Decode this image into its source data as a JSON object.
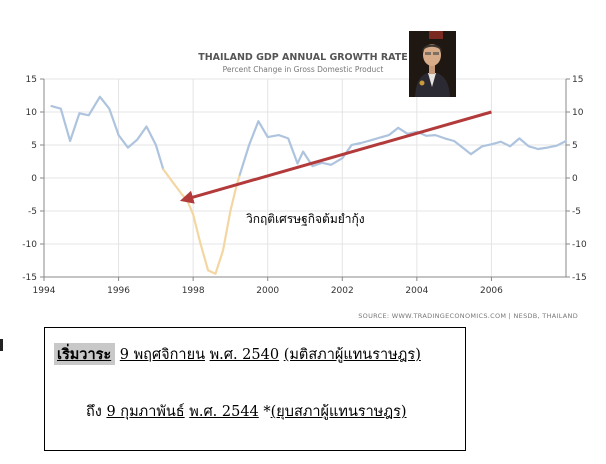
{
  "chart_data": {
    "type": "line",
    "title": "THAILAND GDP ANNUAL GROWTH RATE",
    "subtitle": "Percent Change in Gross Domestic Product",
    "source": "SOURCE: WWW.TRADINGECONOMICS.COM | NESDB, THAILAND",
    "xlim": [
      1994,
      2008
    ],
    "ylim": [
      -15,
      15
    ],
    "x_ticks": [
      "1994",
      "1996",
      "1998",
      "2000",
      "2002",
      "2004",
      "2006"
    ],
    "y_ticks": [
      "15",
      "10",
      "5",
      "0",
      "-5",
      "-10",
      "-15"
    ],
    "grid": true,
    "colors": {
      "normal": "#aec4de",
      "crisis": "#f4d6a2",
      "arrow": "#b23a3a"
    },
    "series": [
      {
        "segment": "normal",
        "points": [
          [
            1994.2,
            10.9
          ],
          [
            1994.45,
            10.5
          ],
          [
            1994.7,
            5.6
          ],
          [
            1994.95,
            9.8
          ],
          [
            1995.2,
            9.5
          ],
          [
            1995.5,
            12.3
          ],
          [
            1995.75,
            10.5
          ],
          [
            1996.0,
            6.5
          ],
          [
            1996.25,
            4.6
          ],
          [
            1996.5,
            5.8
          ],
          [
            1996.75,
            7.8
          ],
          [
            1997.0,
            5.0
          ],
          [
            1997.2,
            1.3
          ]
        ]
      },
      {
        "segment": "crisis",
        "points": [
          [
            1997.2,
            1.3
          ],
          [
            1997.45,
            -0.6
          ],
          [
            1997.7,
            -2.5
          ],
          [
            1997.85,
            -3.5
          ],
          [
            1998.0,
            -5.5
          ],
          [
            1998.2,
            -10.0
          ],
          [
            1998.4,
            -14.0
          ],
          [
            1998.6,
            -14.5
          ],
          [
            1998.8,
            -11.0
          ],
          [
            1999.0,
            -5.0
          ],
          [
            1999.15,
            -1.5
          ],
          [
            1999.25,
            0.5
          ]
        ]
      },
      {
        "segment": "normal",
        "points": [
          [
            1999.25,
            0.5
          ],
          [
            1999.5,
            5.0
          ],
          [
            1999.75,
            8.6
          ],
          [
            2000.0,
            6.2
          ],
          [
            2000.3,
            6.5
          ],
          [
            2000.55,
            6.0
          ],
          [
            2000.8,
            2.2
          ],
          [
            2000.95,
            4.0
          ],
          [
            2001.2,
            1.8
          ],
          [
            2001.45,
            2.3
          ],
          [
            2001.7,
            2.0
          ],
          [
            2002.0,
            3.0
          ],
          [
            2002.25,
            5.0
          ],
          [
            2002.5,
            5.3
          ],
          [
            2002.75,
            5.7
          ],
          [
            2003.0,
            6.1
          ],
          [
            2003.25,
            6.5
          ],
          [
            2003.5,
            7.6
          ],
          [
            2003.75,
            6.7
          ],
          [
            2004.0,
            7.0
          ],
          [
            2004.25,
            6.4
          ],
          [
            2004.5,
            6.5
          ],
          [
            2004.75,
            6.0
          ],
          [
            2005.0,
            5.6
          ],
          [
            2005.25,
            4.5
          ],
          [
            2005.45,
            3.6
          ],
          [
            2005.75,
            4.8
          ],
          [
            2006.0,
            5.1
          ],
          [
            2006.25,
            5.5
          ],
          [
            2006.5,
            4.8
          ],
          [
            2006.75,
            6.0
          ],
          [
            2007.0,
            4.8
          ],
          [
            2007.25,
            4.4
          ],
          [
            2007.5,
            4.6
          ],
          [
            2007.75,
            4.9
          ],
          [
            2008.0,
            5.6
          ]
        ]
      }
    ],
    "annotation": {
      "text": "วิกฤติเศรษฐกิจต้มยำกุ้ง",
      "arrow_from": [
        2006.0,
        10.0
      ],
      "arrow_to": [
        1997.75,
        -3.3
      ]
    }
  },
  "photo": {
    "icon": "man-portrait-icon"
  },
  "info": {
    "start_label": "เริ่มวาระ",
    "start_date": "9 พฤศจิกายน",
    "start_year": "พ.ศ. 2540",
    "start_reason": "(มติสภาผู้แทนราษฎร)",
    "end_label": "ถึง",
    "end_date": "9 กุมภาพันธ์",
    "end_year": "พ.ศ. 2544",
    "end_reason_prefix": "*",
    "end_reason": "(ยุบสภาผู้แทนราษฎร)"
  }
}
